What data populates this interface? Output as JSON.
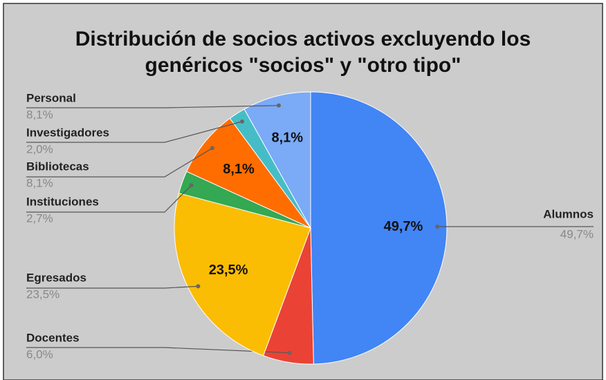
{
  "chart_data": {
    "type": "pie",
    "title": [
      "Distribución de socios activos excluyendo los",
      "genéricos \"socios\" y \"otro tipo\""
    ],
    "categories": [
      "Alumnos",
      "Docentes",
      "Egresados",
      "Instituciones",
      "Bibliotecas",
      "Investigadores",
      "Personal"
    ],
    "values": [
      49.7,
      6.0,
      23.5,
      2.7,
      8.1,
      2.0,
      8.1
    ],
    "value_labels": [
      "49,7%",
      "6,0%",
      "23,5%",
      "2,7%",
      "8,1%",
      "2,0%",
      "8,1%"
    ],
    "colors": [
      "#4285f4",
      "#ea4335",
      "#fbbc04",
      "#34a853",
      "#ff6d01",
      "#46bdc6",
      "#7baaf7"
    ]
  }
}
